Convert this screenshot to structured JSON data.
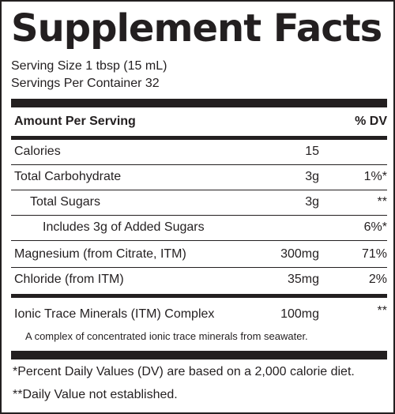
{
  "label": {
    "title": "Supplement Facts",
    "serving_size": "Serving Size 1 tbsp (15 mL)",
    "servings_per_container": "Servings Per Container 32",
    "header": {
      "amount": "Amount Per Serving",
      "dv": "% DV"
    },
    "rows": [
      {
        "name": "Calories",
        "amount": "15",
        "dv": ""
      },
      {
        "name": "Total Carbohydrate",
        "amount": "3g",
        "dv": "1%*"
      },
      {
        "name": "Total Sugars",
        "amount": "3g",
        "dv": "**"
      },
      {
        "name": "Includes 3g of Added Sugars",
        "amount": "",
        "dv": "6%*"
      },
      {
        "name": "Magnesium (from Citrate, ITM)",
        "amount": "300mg",
        "dv": "71%"
      },
      {
        "name": "Chloride (from ITM)",
        "amount": "35mg",
        "dv": "2%"
      }
    ],
    "complex": {
      "name": "Ionic Trace Minerals (ITM) Complex",
      "amount": "100mg",
      "dv": "**",
      "description": "A complex of concentrated ionic trace minerals from seawater."
    },
    "footnotes": [
      "*Percent Daily Values (DV) are based on a 2,000 calorie diet.",
      "**Daily Value not established."
    ],
    "colors": {
      "ink": "#231f20",
      "background": "#ffffff"
    }
  }
}
